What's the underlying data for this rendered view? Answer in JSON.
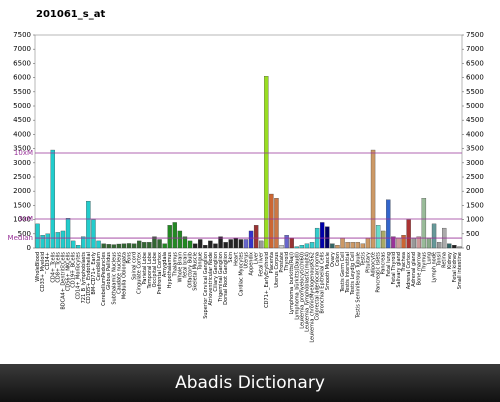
{
  "chart_data": {
    "type": "bar",
    "title": "201061_s_at",
    "categories": [
      "WholeBlood",
      "CD33+_Myeloid",
      "CD34+",
      "CD4+_Tcells",
      "CD8+_Tcells",
      "BDCA4+_DentriticCells",
      "CD56+_NKCells",
      "CD19+_BCells",
      "CD14+_Monocytes",
      "721_B_lymphoblasts",
      "CD105+_Endothelial",
      "BM-CD71+_Early",
      "Cerebellum",
      "CerebellumPeduncles",
      "Globus Pallidus",
      "Subthalamic Nucleus",
      "Caudate nucleus",
      "Medulla Oblongata",
      "Pons",
      "Spinal cord",
      "Cingulate Cortex",
      "Parietal Lobe",
      "Temporal Lobe",
      "Occipital Lobe",
      "Prefrontal Cortex",
      "Amygdala",
      "Hypothalamus",
      "Thalamus",
      "Whole Brain",
      "fetal brain",
      "Olfactory Bulb",
      "Skeletal Muscle",
      "Tongue",
      "Superior Cervical Ganglion",
      "Atrioventricular Node",
      "Ciliary Ganglion",
      "Trigeminal Ganglion",
      "Dorsal Root Ganglion",
      "Skin",
      "Heart",
      "Cardiac Myocytes",
      "Uterus",
      "Appendix",
      "Liver",
      "Fetal liver",
      "CD71+_EarlyErythroid",
      "Placenta",
      "Uterus Corpus",
      "Prostate",
      "Thyroid",
      "Lymphoma_burkitts(Raji)",
      "Lymphoma_burkitts(Daudi)",
      "Leukemia_promyelocytic(hl60)",
      "Leukemia_lymphoblastic(molt4)",
      "Leukemia_chronicMyelogenousK562",
      "Colorectal adenocarcinoma",
      "Bronchial Epithelial Cells",
      "Smooth Muscle",
      "Ovary",
      "Colon",
      "Testis Germ Cell",
      "Testis Interstitial",
      "Testis Leydig Cell",
      "Testis Seminiferous Tubule",
      "Testis",
      "Pituitary",
      "Adipocyte",
      "Pancreatic Islets",
      "Pancreas",
      "Fetal lung",
      "Fetal Thyroid",
      "Salivary gland",
      "Trachea",
      "Adrenal Cortex",
      "Adrenal gland",
      "Bone marrow",
      "Thymus",
      "Lung",
      "Lymph node",
      "Tonsil",
      "Retina",
      "Kidney",
      "Fetal kidney",
      "Small intestine"
    ],
    "values": [
      850,
      450,
      500,
      3450,
      550,
      600,
      1050,
      250,
      100,
      400,
      1650,
      1000,
      250,
      150,
      130,
      120,
      140,
      150,
      160,
      150,
      250,
      200,
      200,
      400,
      300,
      150,
      800,
      900,
      600,
      400,
      250,
      150,
      300,
      100,
      250,
      150,
      400,
      200,
      300,
      350,
      300,
      300,
      600,
      800,
      250,
      6050,
      1900,
      1750,
      100,
      450,
      350,
      50,
      100,
      150,
      200,
      700,
      900,
      750,
      150,
      100,
      350,
      200,
      200,
      200,
      150,
      350,
      3450,
      800,
      600,
      1700,
      400,
      350,
      450,
      1000,
      350,
      400,
      1750,
      350,
      850,
      200,
      700,
      150,
      100,
      50
    ],
    "colors": [
      "#22cccc",
      "#22cccc",
      "#22cccc",
      "#22cccc",
      "#22cccc",
      "#22cccc",
      "#22cccc",
      "#22cccc",
      "#22cccc",
      "#22cccc",
      "#22cccc",
      "#22cccc",
      "#22cccc",
      "#336633",
      "#336633",
      "#336633",
      "#336633",
      "#336633",
      "#336633",
      "#336633",
      "#336633",
      "#336633",
      "#336633",
      "#336633",
      "#336633",
      "#228822",
      "#228822",
      "#228822",
      "#228822",
      "#228822",
      "#228822",
      "#222222",
      "#222222",
      "#222222",
      "#222222",
      "#222222",
      "#222222",
      "#222222",
      "#222222",
      "#222222",
      "#222222",
      "#6666cc",
      "#3333cc",
      "#993333",
      "#999999",
      "#99dd22",
      "#cc6633",
      "#cc7744",
      "#cccccc",
      "#6666cc",
      "#993333",
      "#33cccc",
      "#33cccc",
      "#33cccc",
      "#33cccc",
      "#33cccc",
      "#0000aa",
      "#000066",
      "#336666",
      "#cc9966",
      "#cc9966",
      "#cc9966",
      "#cc9966",
      "#cc9966",
      "#cc9966",
      "#cc9966",
      "#cc9966",
      "#66ddcc",
      "#aaaa66",
      "#3366cc",
      "#993399",
      "#cc9999",
      "#cc6633",
      "#aa3333",
      "#999999",
      "#cc9999",
      "#99bb99",
      "#88aa88",
      "#669999",
      "#999999",
      "#aaaaaa",
      "#336666",
      "#222222",
      "#999999"
    ],
    "ylim": [
      0,
      7500
    ],
    "yticks": [
      0,
      500,
      1000,
      1500,
      2000,
      2500,
      3000,
      3500,
      4000,
      4500,
      5000,
      5500,
      6000,
      6500,
      7000,
      7500
    ],
    "reference_lines": [
      {
        "label": "10xM",
        "value": 3345
      },
      {
        "label": "3xM",
        "value": 1020
      },
      {
        "label": "Median",
        "value": 350
      }
    ],
    "reference_color": "#993399"
  },
  "caption": "Abadis Dictionary"
}
